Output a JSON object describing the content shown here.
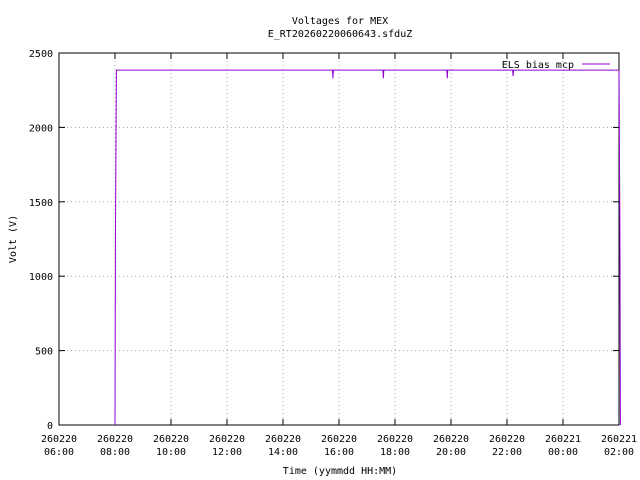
{
  "chart_data": {
    "type": "line",
    "title": "Voltages for MEX",
    "subtitle": "E_RT20260220060643.sfduZ",
    "xlabel": "Time (yymmdd HH:MM)",
    "ylabel": "Volt (V)",
    "x": [
      "260220 08:00",
      "260220 08:01",
      "260220 08:03",
      "260220 15:46",
      "260220 15:47",
      "260220 15:48",
      "260220 17:34",
      "260220 17:35",
      "260220 17:36",
      "260220 19:51",
      "260220 19:52",
      "260220 19:53",
      "260220 22:12",
      "260220 22:13",
      "260220 22:14",
      "260221 02:00",
      "260221 02:02",
      "260221 02:03"
    ],
    "series": [
      {
        "name": "ELS bias mcp",
        "color": "#9400d3",
        "values": [
          0,
          1280,
          2385,
          2385,
          2330,
          2385,
          2385,
          2330,
          2385,
          2385,
          2330,
          2385,
          2385,
          2345,
          2385,
          2385,
          1280,
          0
        ]
      }
    ],
    "xlim": [
      "260220 06:00",
      "260221 02:00"
    ],
    "xticks": [
      "260220 06:00",
      "260220 08:00",
      "260220 10:00",
      "260220 12:00",
      "260220 14:00",
      "260220 16:00",
      "260220 18:00",
      "260220 20:00",
      "260220 22:00",
      "260221 00:00",
      "260221 02:00"
    ],
    "ylim": [
      0,
      2500
    ],
    "yticks": [
      0,
      500,
      1000,
      1500,
      2000,
      2500
    ],
    "grid": true,
    "legend": "top-right"
  }
}
